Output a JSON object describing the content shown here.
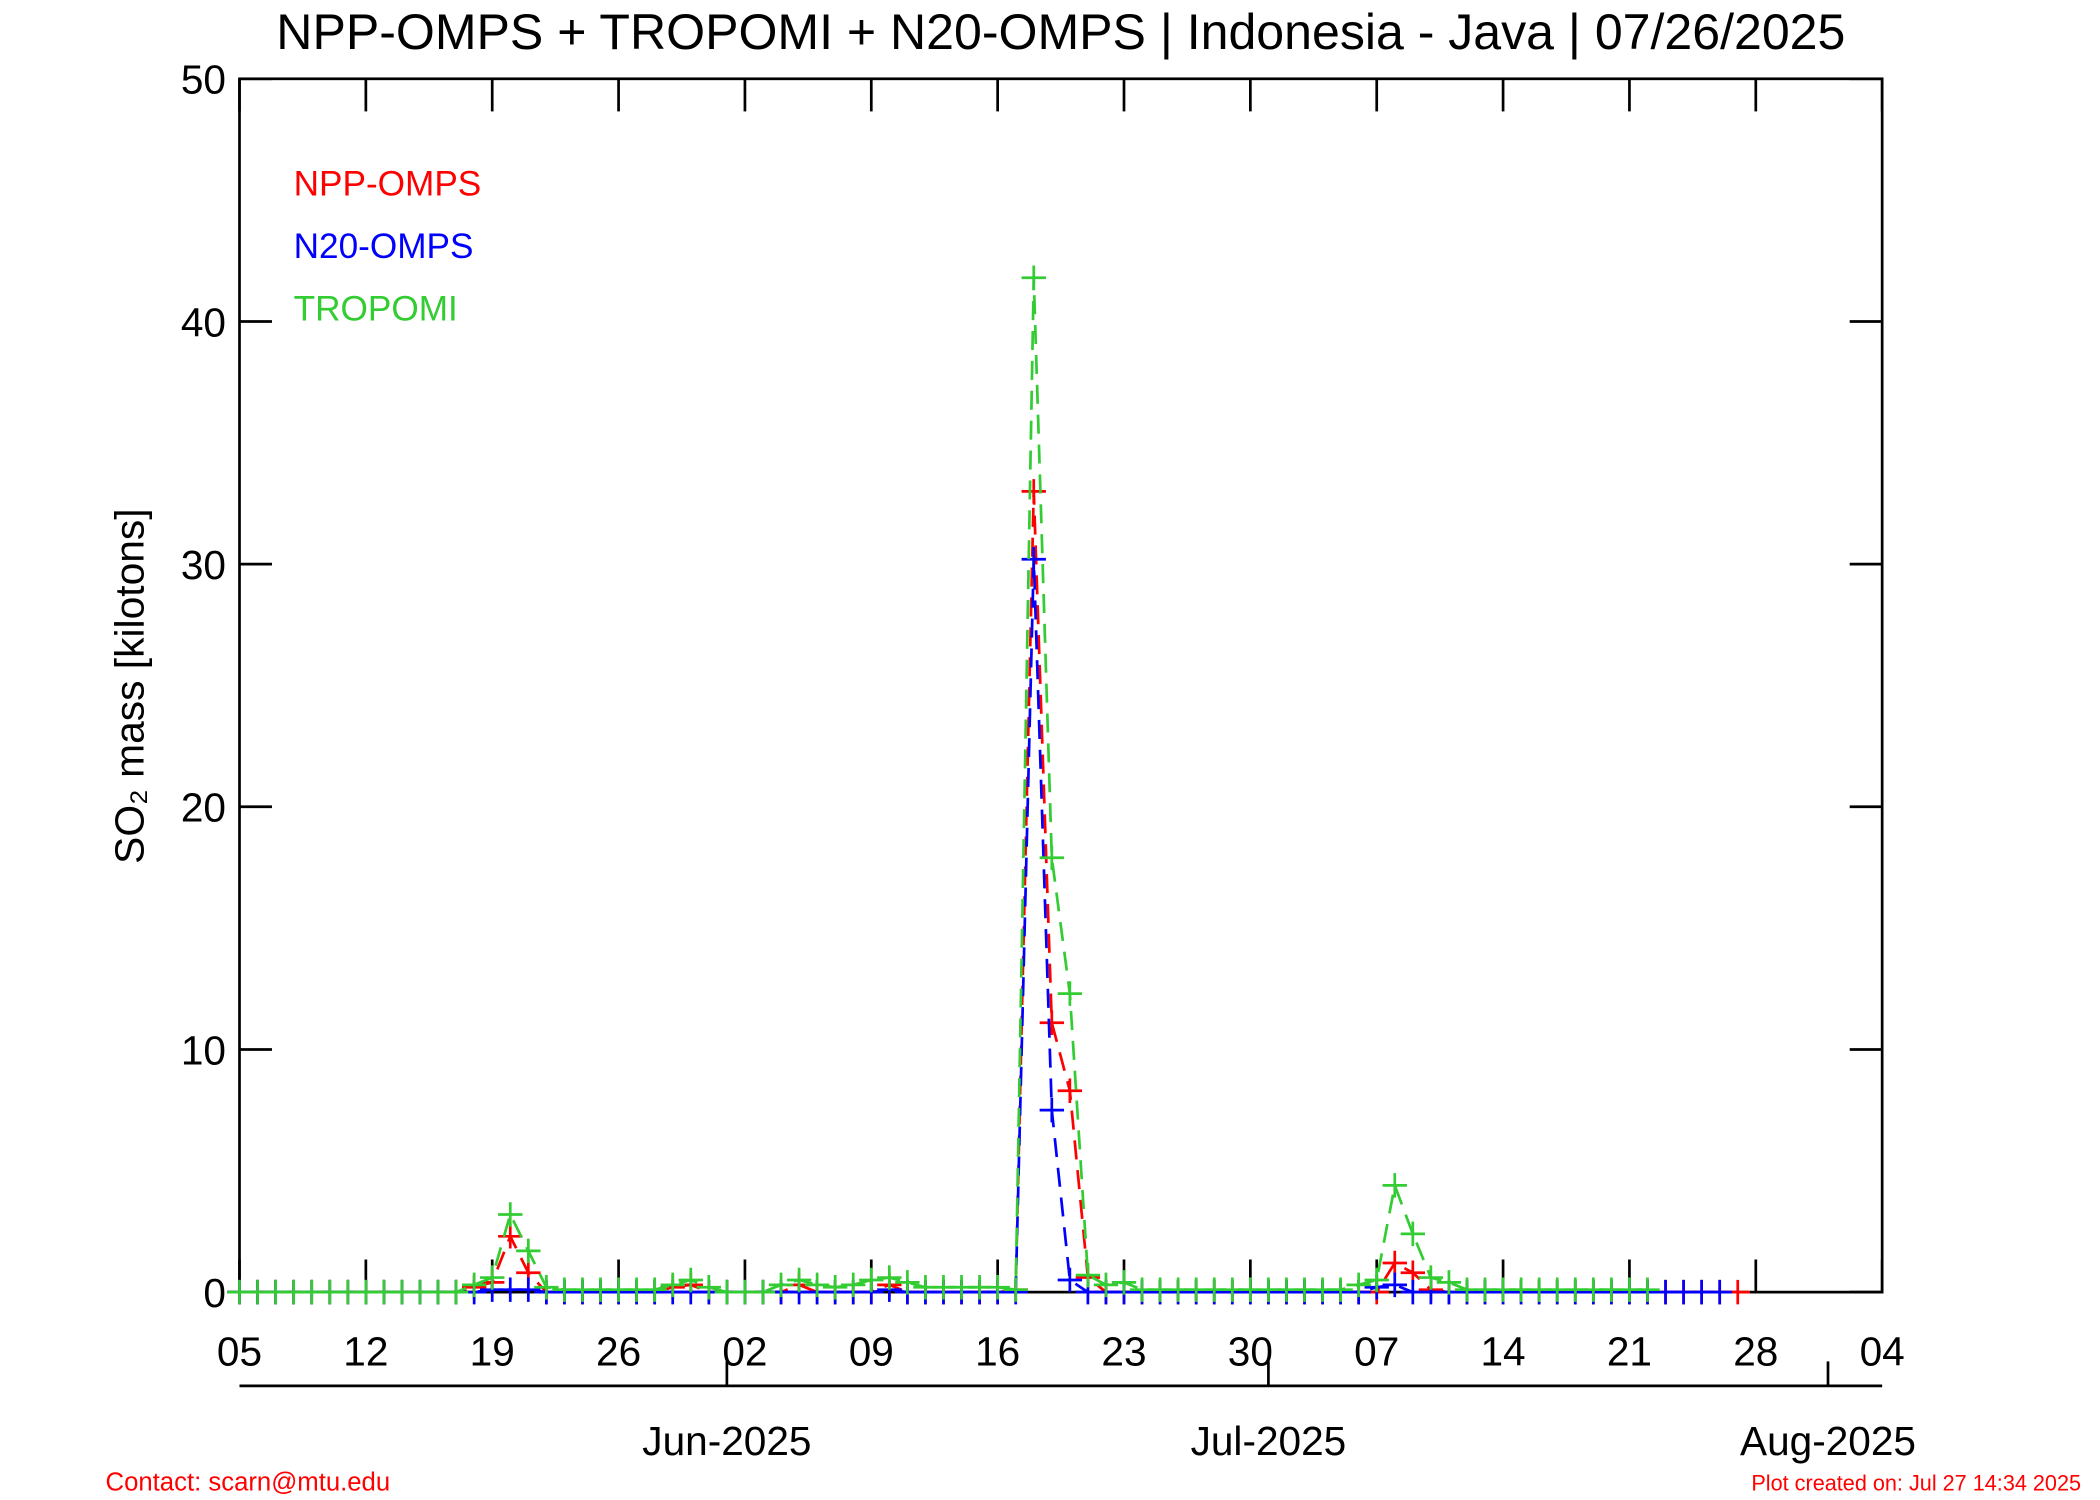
{
  "chart_data": {
    "type": "line",
    "title": "NPP-OMPS + TROPOMI + N20-OMPS | Indonesia - Java | 07/26/2025",
    "y_label": "SO₂ mass [kilotons]",
    "footer_left": "Contact: scarn@mtu.edu",
    "footer_right": "Plot created on: Jul 27 14:34 2025",
    "x": [
      "2025-05-05",
      "2025-05-06",
      "2025-05-07",
      "2025-05-08",
      "2025-05-09",
      "2025-05-10",
      "2025-05-11",
      "2025-05-12",
      "2025-05-13",
      "2025-05-14",
      "2025-05-15",
      "2025-05-16",
      "2025-05-17",
      "2025-05-18",
      "2025-05-19",
      "2025-05-20",
      "2025-05-21",
      "2025-05-22",
      "2025-05-23",
      "2025-05-24",
      "2025-05-25",
      "2025-05-26",
      "2025-05-27",
      "2025-05-28",
      "2025-05-29",
      "2025-05-30",
      "2025-05-31",
      "2025-06-01",
      "2025-06-02",
      "2025-06-03",
      "2025-06-04",
      "2025-06-05",
      "2025-06-06",
      "2025-06-07",
      "2025-06-08",
      "2025-06-09",
      "2025-06-10",
      "2025-06-11",
      "2025-06-12",
      "2025-06-13",
      "2025-06-14",
      "2025-06-15",
      "2025-06-16",
      "2025-06-17",
      "2025-06-18",
      "2025-06-19",
      "2025-06-20",
      "2025-06-21",
      "2025-06-22",
      "2025-06-23",
      "2025-06-24",
      "2025-06-25",
      "2025-06-26",
      "2025-06-27",
      "2025-06-28",
      "2025-06-29",
      "2025-06-30",
      "2025-07-01",
      "2025-07-02",
      "2025-07-03",
      "2025-07-04",
      "2025-07-05",
      "2025-07-06",
      "2025-07-07",
      "2025-07-08",
      "2025-07-09",
      "2025-07-10",
      "2025-07-11",
      "2025-07-12",
      "2025-07-13",
      "2025-07-14",
      "2025-07-15",
      "2025-07-16",
      "2025-07-17",
      "2025-07-18",
      "2025-07-19",
      "2025-07-20",
      "2025-07-21",
      "2025-07-22",
      "2025-07-23",
      "2025-07-24",
      "2025-07-25",
      "2025-07-26",
      "2025-07-27"
    ],
    "series": [
      {
        "name": "NPP-OMPS",
        "color": "#ff0000",
        "values": [
          0,
          0,
          0,
          0,
          0,
          0,
          0,
          0,
          0,
          0,
          0,
          0,
          0,
          0.2,
          0.4,
          2.3,
          0.8,
          0,
          0,
          0,
          0,
          0,
          0,
          0,
          0.2,
          0.3,
          0,
          0,
          0,
          0,
          0,
          0.3,
          0,
          0,
          0,
          0,
          0.3,
          0,
          0,
          0,
          0,
          0,
          0,
          0.1,
          33.0,
          11.1,
          8.3,
          0.6,
          0,
          0,
          0,
          0,
          0,
          0,
          0,
          0,
          0,
          0,
          0,
          0,
          0,
          0,
          0,
          0,
          1.2,
          0.8,
          0.1,
          0,
          0,
          0,
          0,
          0,
          0,
          0,
          0,
          0,
          0,
          0,
          0,
          0,
          0,
          0,
          0,
          0
        ]
      },
      {
        "name": "N20-OMPS",
        "color": "#0000ff",
        "values": [
          0,
          0,
          0,
          0,
          0,
          0,
          0,
          0,
          0,
          0,
          0,
          0,
          0,
          0,
          0.1,
          0.1,
          0.1,
          0,
          0,
          0,
          0,
          0,
          0,
          0,
          0,
          0,
          0,
          0,
          0,
          0,
          0,
          0,
          0,
          0,
          0,
          0,
          0.1,
          0,
          0,
          0,
          0,
          0,
          0,
          0,
          30.2,
          7.5,
          0.5,
          0,
          0,
          0,
          0,
          0,
          0,
          0,
          0,
          0,
          0,
          0,
          0,
          0,
          0,
          0,
          0,
          0.2,
          0.3,
          0,
          0,
          0,
          0,
          0,
          0,
          0,
          0,
          0,
          0,
          0,
          0,
          0,
          0,
          0,
          0,
          0,
          0,
          null
        ]
      },
      {
        "name": "TROPOMI",
        "color": "#33cc33",
        "values": [
          0,
          0,
          0,
          0,
          0,
          0,
          0,
          0,
          0,
          0,
          0,
          0,
          0,
          0.3,
          0.6,
          3.2,
          1.7,
          0.2,
          0.1,
          0.1,
          0.1,
          0.1,
          0.1,
          0.1,
          0.3,
          0.5,
          0.2,
          0,
          0,
          0,
          0.3,
          0.5,
          0.3,
          0.2,
          0.3,
          0.5,
          0.6,
          0.4,
          0.2,
          0.2,
          0.2,
          0.2,
          0.2,
          0.1,
          41.8,
          17.9,
          12.3,
          0.7,
          0.3,
          0.4,
          0.1,
          0.1,
          0.1,
          0.1,
          0.1,
          0.1,
          0.1,
          0.1,
          0.1,
          0.1,
          0.1,
          0.1,
          0.3,
          0.5,
          4.4,
          2.4,
          0.6,
          0.4,
          0.1,
          0.1,
          0.1,
          0.1,
          0.1,
          0.1,
          0.1,
          0.1,
          0.1,
          0.1,
          0.1,
          null,
          null,
          null,
          null,
          null
        ]
      }
    ],
    "xlim": [
      "2025-05-05",
      "2025-08-04"
    ],
    "xticks": [
      {
        "value": "2025-05-05",
        "label": "05"
      },
      {
        "value": "2025-05-12",
        "label": "12"
      },
      {
        "value": "2025-05-19",
        "label": "19"
      },
      {
        "value": "2025-05-26",
        "label": "26"
      },
      {
        "value": "2025-06-02",
        "label": "02"
      },
      {
        "value": "2025-06-09",
        "label": "09"
      },
      {
        "value": "2025-06-16",
        "label": "16"
      },
      {
        "value": "2025-06-23",
        "label": "23"
      },
      {
        "value": "2025-06-30",
        "label": "30"
      },
      {
        "value": "2025-07-07",
        "label": "07"
      },
      {
        "value": "2025-07-14",
        "label": "14"
      },
      {
        "value": "2025-07-21",
        "label": "21"
      },
      {
        "value": "2025-07-28",
        "label": "28"
      },
      {
        "value": "2025-08-04",
        "label": "04"
      }
    ],
    "x2ticks": [
      {
        "value": "2025-06-01",
        "label": "Jun-2025"
      },
      {
        "value": "2025-07-01",
        "label": "Jul-2025"
      },
      {
        "value": "2025-08-01",
        "label": "Aug-2025"
      }
    ],
    "ylim": [
      0,
      50
    ],
    "yticks": [
      0,
      10,
      20,
      30,
      40,
      50
    ]
  }
}
